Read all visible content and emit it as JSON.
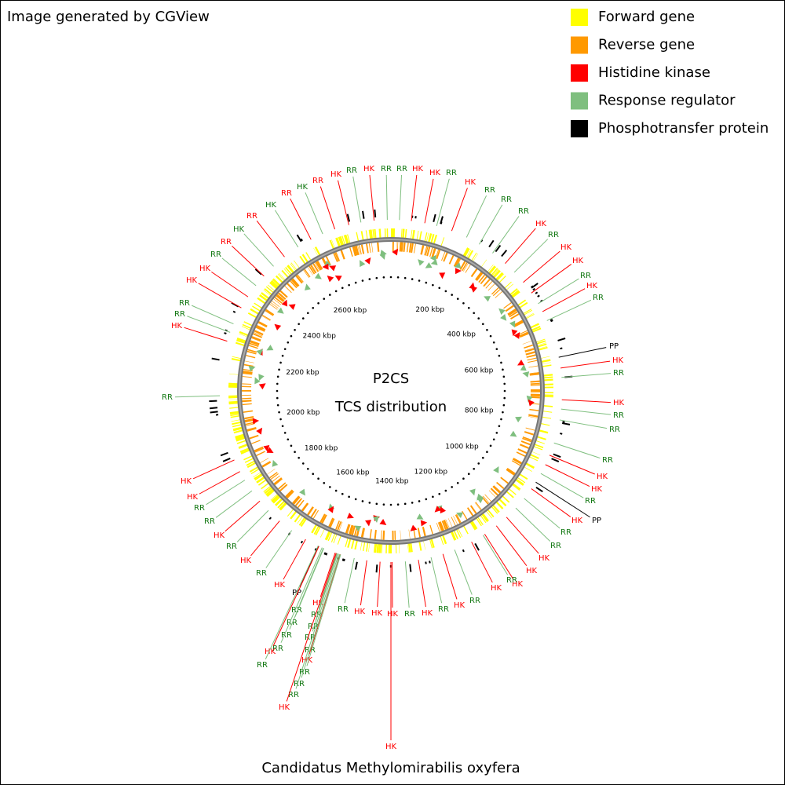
{
  "header": {
    "text": "Image generated by CGView"
  },
  "legend": [
    {
      "label": "Forward gene",
      "color": "#ffff00"
    },
    {
      "label": "Reverse gene",
      "color": "#ff9900"
    },
    {
      "label": "Histidine kinase",
      "color": "#ff0000"
    },
    {
      "label": "Response regulator",
      "color": "#7fbf7f"
    },
    {
      "label": "Phosphotransfer protein",
      "color": "#000000"
    }
  ],
  "map": {
    "title_lines": [
      "P2CS",
      "TCS distribution"
    ],
    "tick_labels": [
      "200 kbp",
      "400 kbp",
      "600 kbp",
      "800 kbp",
      "1000 kbp",
      "1200 kbp",
      "1400 kbp",
      "1600 kbp",
      "1800 kbp",
      "2000 kbp",
      "2200 kbp",
      "2400 kbp",
      "2600 kbp"
    ],
    "feature_labels": [
      "RR",
      "HK",
      "RR",
      "RR",
      "HK",
      "HK",
      "RR",
      "HK",
      "RR",
      "RR",
      "RR",
      "HK",
      "RR",
      "HK",
      "HK",
      "RR",
      "HK",
      "RR",
      "PP",
      "HK",
      "RR",
      "HK",
      "RR",
      "RR",
      "RR",
      "HK",
      "HK",
      "RR",
      "PP",
      "HK",
      "RR",
      "RR",
      "HK",
      "HK",
      "HK",
      "RR",
      "HK",
      "RR",
      "HK",
      "RR",
      "HK",
      "RR",
      "HK",
      "HK",
      "HK",
      "RR",
      "HK",
      "RR",
      "RR",
      "RR",
      "RR",
      "HK",
      "RR",
      "RR",
      "RR",
      "HK",
      "PP",
      "RR",
      "RR",
      "RR",
      "RR",
      "HK",
      "RR",
      "HK",
      "RR",
      "HK",
      "RR",
      "HK",
      "RR",
      "RR",
      "HK",
      "HK",
      "RR",
      "HK",
      "RR",
      "RR",
      "HK",
      "HK",
      "RR",
      "RR",
      "HK",
      "RR",
      "HK",
      "RR",
      "HK",
      "RR",
      "HK",
      "HK"
    ]
  },
  "footer": {
    "text": "Candidatus Methylomirabilis oxyfera"
  }
}
